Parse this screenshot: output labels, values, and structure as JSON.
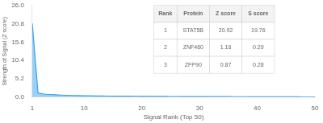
{
  "chart_data": {
    "type": "area",
    "xlabel": "Signal Rank (Top 50)",
    "ylabel": "Strength of Signal (Z score)",
    "x": [
      1,
      2,
      3,
      4,
      5,
      6,
      7,
      8,
      9,
      10,
      11,
      12,
      13,
      14,
      15,
      16,
      17,
      18,
      19,
      20,
      21,
      22,
      23,
      24,
      25,
      26,
      27,
      28,
      29,
      30,
      31,
      32,
      33,
      34,
      35,
      36,
      37,
      38,
      39,
      40,
      41,
      42,
      43,
      44,
      45,
      46,
      47,
      48,
      49,
      50
    ],
    "values": [
      20.92,
      1.16,
      0.87,
      0.75,
      0.65,
      0.58,
      0.52,
      0.47,
      0.43,
      0.4,
      0.37,
      0.34,
      0.32,
      0.3,
      0.28,
      0.27,
      0.26,
      0.25,
      0.24,
      0.23,
      0.22,
      0.21,
      0.2,
      0.19,
      0.185,
      0.18,
      0.175,
      0.17,
      0.165,
      0.16,
      0.155,
      0.15,
      0.145,
      0.14,
      0.135,
      0.13,
      0.125,
      0.12,
      0.115,
      0.11,
      0.105,
      0.1,
      0.095,
      0.09,
      0.085,
      0.08,
      0.075,
      0.07,
      0.065,
      0.06
    ],
    "xlim": [
      1,
      50
    ],
    "xticks": [
      1,
      10,
      20,
      30,
      40,
      50
    ],
    "ylim": [
      0,
      26
    ],
    "yticks": [
      {
        "value": 0,
        "label": "0.0"
      },
      5.2,
      10.4,
      15.6,
      20.8,
      {
        "value": 26,
        "label": "26.0"
      }
    ],
    "grid": false,
    "table": {
      "headers": [
        "Rank",
        "Protein",
        "Z score",
        "S score"
      ],
      "rows": [
        [
          "1",
          "STAT5B",
          "20.92",
          "19.76"
        ],
        [
          "2",
          "ZNF460",
          "1.16",
          "0.29"
        ],
        [
          "3",
          "ZFP90",
          "0.87",
          "0.28"
        ]
      ]
    }
  }
}
